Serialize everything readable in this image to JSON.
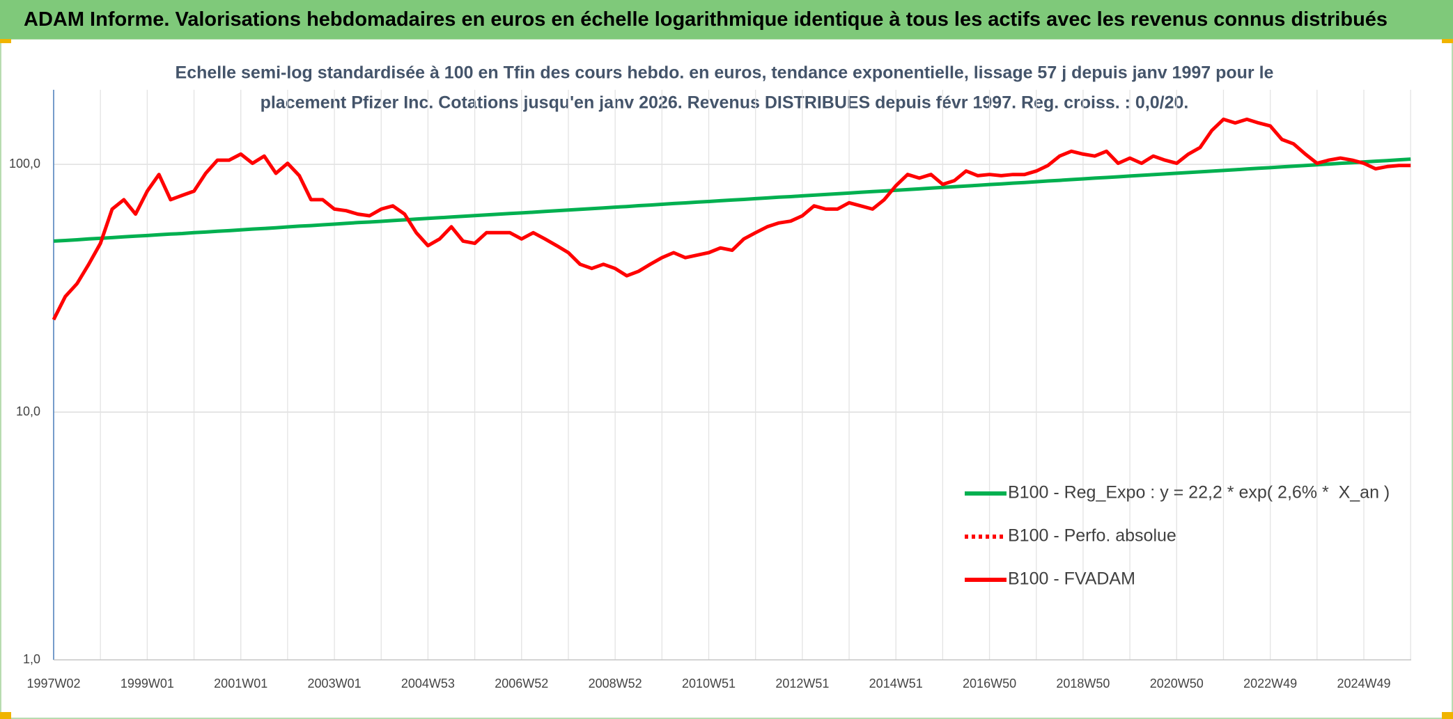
{
  "page_title": "ADAM Informe. Valorisations hebdomadaires en euros en échelle logarithmique identique à tous les actifs avec les revenus connus distribués",
  "chart_data": {
    "type": "line",
    "title": [
      "Echelle semi-log standardisée à 100 en Tfin des cours hebdo. en euros, tendance exponentielle, lissage 57 j depuis janv 1997 pour le",
      "placement Pfizer Inc. Cotations jusqu'en janv 2026. Revenus DISTRIBUES depuis févr 1997. Reg. croiss. : 0,0/20."
    ],
    "categories": [
      "1997W02",
      null,
      null,
      null,
      null,
      null,
      null,
      null,
      "1999W01",
      null,
      null,
      null,
      null,
      null,
      null,
      null,
      "2001W01",
      null,
      null,
      null,
      null,
      null,
      null,
      null,
      "2003W01",
      null,
      null,
      null,
      null,
      null,
      null,
      null,
      "2004W53",
      null,
      null,
      null,
      null,
      null,
      null,
      null,
      "2006W52",
      null,
      null,
      null,
      null,
      null,
      null,
      null,
      "2008W52",
      null,
      null,
      null,
      null,
      null,
      null,
      null,
      "2010W51",
      null,
      null,
      null,
      null,
      null,
      null,
      null,
      "2012W51",
      null,
      null,
      null,
      null,
      null,
      null,
      null,
      "2014W51",
      null,
      null,
      null,
      null,
      null,
      null,
      null,
      "2016W50",
      null,
      null,
      null,
      null,
      null,
      null,
      null,
      "2018W50",
      null,
      null,
      null,
      null,
      null,
      null,
      null,
      "2020W50",
      null,
      null,
      null,
      null,
      null,
      null,
      null,
      "2022W49",
      null,
      null,
      null,
      null,
      null,
      null,
      null,
      "2024W49",
      null,
      null,
      null,
      null
    ],
    "series": [
      {
        "name": "B100 - Reg_Expo : y = 22,2 * exp( 2,6% *  X_an )",
        "color": "#00b050",
        "dash": "solid",
        "values": [
          49.0,
          49.3,
          49.6,
          50.0,
          50.3,
          50.6,
          51.0,
          51.3,
          51.6,
          52.0,
          52.3,
          52.6,
          53.0,
          53.3,
          53.7,
          54.0,
          54.4,
          54.8,
          55.1,
          55.5,
          55.9,
          56.3,
          56.6,
          57.0,
          57.4,
          57.8,
          58.2,
          58.5,
          58.9,
          59.3,
          59.7,
          60.1,
          60.5,
          60.9,
          61.3,
          61.7,
          62.1,
          62.5,
          62.9,
          63.3,
          63.7,
          64.1,
          64.6,
          65.0,
          65.4,
          65.8,
          66.3,
          66.7,
          67.2,
          67.6,
          68.1,
          68.5,
          69.0,
          69.5,
          69.9,
          70.4,
          70.8,
          71.3,
          71.8,
          72.2,
          72.7,
          73.2,
          73.7,
          74.1,
          74.6,
          75.1,
          75.6,
          76.1,
          76.6,
          77.1,
          77.6,
          78.1,
          78.6,
          79.1,
          79.6,
          80.2,
          80.7,
          81.2,
          81.8,
          82.3,
          82.9,
          83.4,
          84.0,
          84.5,
          85.1,
          85.7,
          86.2,
          86.8,
          87.4,
          88.0,
          88.5,
          89.1,
          89.7,
          90.3,
          90.9,
          91.5,
          92.1,
          92.7,
          93.3,
          93.9,
          94.5,
          95.1,
          95.8,
          96.4,
          97.0,
          97.7,
          98.3,
          99.0,
          99.6,
          100.3,
          101.0,
          101.6,
          102.3,
          103.0,
          103.6,
          104.3,
          105.0
        ]
      },
      {
        "name": "B100 - Perfo. absolue",
        "color": "#ff0000",
        "dash": "dotted",
        "values": [
          null,
          null,
          null,
          null,
          null,
          null,
          null,
          null,
          null,
          null,
          null,
          null,
          null,
          null,
          null,
          null,
          null,
          null,
          null,
          null,
          null,
          null,
          null,
          null,
          null,
          null,
          null,
          null,
          null,
          null,
          null,
          null,
          null,
          null,
          null,
          null,
          null,
          null,
          null,
          null,
          null,
          null,
          null,
          null,
          null,
          null,
          null,
          null,
          null,
          null,
          null,
          null,
          null,
          null,
          null,
          null,
          null,
          null,
          null,
          null,
          null,
          null,
          null,
          null,
          null,
          null,
          null,
          null,
          null,
          null,
          null,
          null,
          null,
          null,
          null,
          null,
          null,
          null,
          null,
          null,
          null,
          null,
          null,
          null,
          null,
          null,
          null,
          null,
          null,
          null,
          null,
          null,
          null,
          null,
          null,
          null,
          null,
          null,
          null,
          null,
          null,
          null,
          null,
          null,
          null,
          null,
          null,
          null,
          null,
          null,
          null,
          null,
          null,
          null,
          null,
          null,
          null
        ]
      },
      {
        "name": "B100 - FVADAM",
        "color": "#ff0000",
        "dash": "solid",
        "values": [
          23.6,
          29.3,
          33,
          39.5,
          48,
          66,
          72,
          63,
          78,
          91,
          72,
          75,
          78,
          92,
          104,
          104,
          110,
          101,
          108,
          92,
          101,
          90,
          72,
          72,
          66,
          65,
          63,
          62,
          66,
          68,
          63,
          53,
          47,
          50,
          56,
          49,
          48,
          53,
          53,
          53,
          50,
          53,
          50,
          47,
          44,
          39.5,
          38,
          39.5,
          38,
          35.5,
          37,
          39.5,
          42,
          44,
          42,
          43,
          44,
          46,
          45,
          50,
          53,
          56,
          58,
          59,
          62,
          68,
          66,
          66,
          70,
          68,
          66,
          72,
          82,
          91,
          88,
          91,
          83,
          86,
          94,
          90,
          91,
          90,
          91,
          91,
          94,
          99,
          108,
          113,
          110,
          108,
          113,
          101,
          106,
          101,
          108,
          104,
          101,
          110,
          117,
          137,
          152,
          147,
          152,
          147,
          143,
          126,
          121,
          110,
          101,
          104,
          106,
          104,
          101,
          96,
          98,
          99,
          99
        ]
      }
    ],
    "ylim": [
      1,
      200
    ],
    "yticks": [
      {
        "value": 1,
        "label": "1,0"
      },
      {
        "value": 10,
        "label": "10,0"
      },
      {
        "value": 100,
        "label": "100,0"
      }
    ],
    "log_scale": true,
    "grid": true,
    "legend_position": "lower right"
  }
}
